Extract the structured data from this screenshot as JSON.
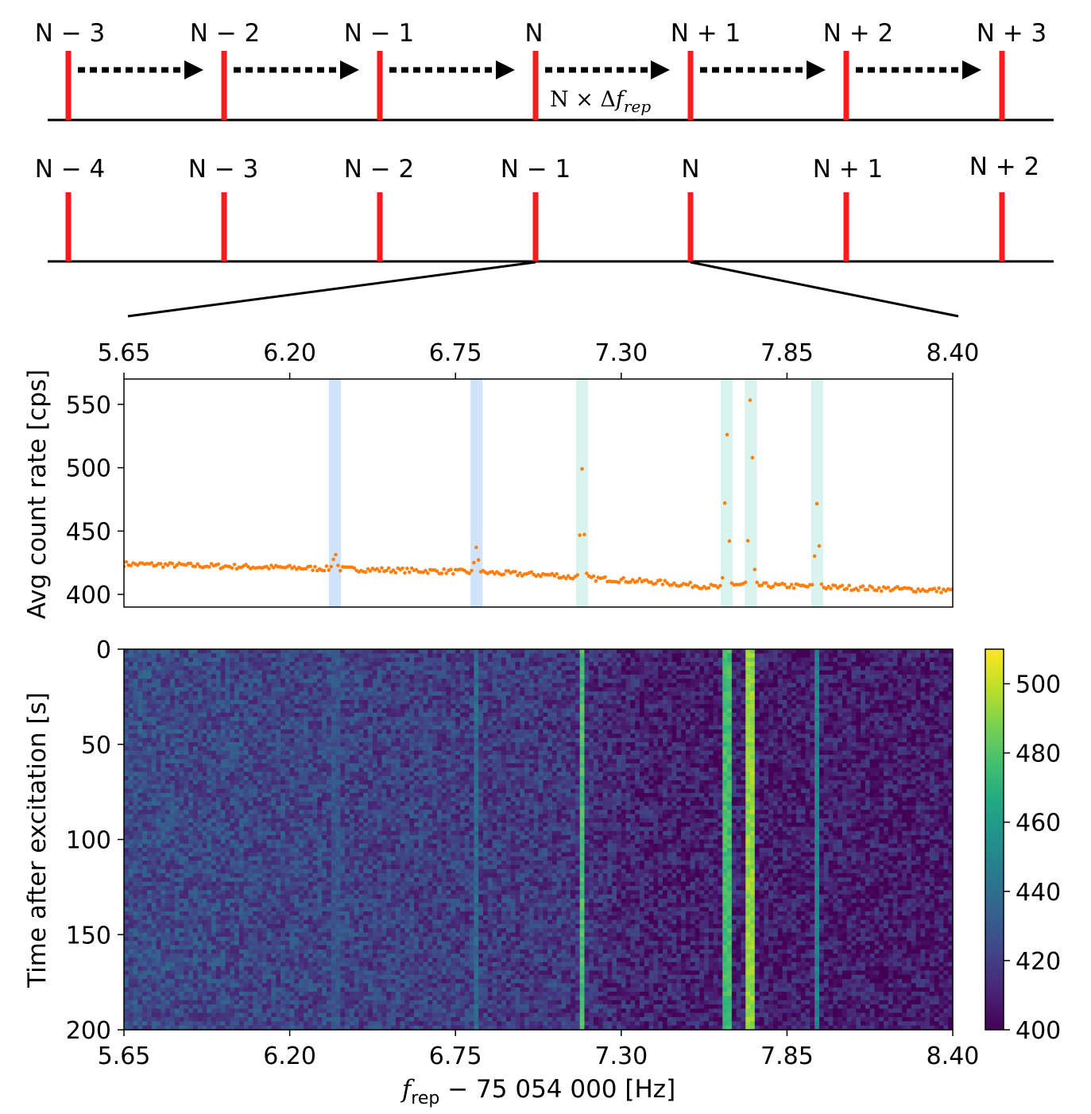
{
  "comb_diagram": {
    "top_row_labels": [
      "N − 3",
      "N − 2",
      "N − 1",
      "N",
      "N + 1",
      "N + 2",
      "N + 3"
    ],
    "bottom_row_labels": [
      "N − 4",
      "N − 3",
      "N − 2",
      "N − 1",
      "N",
      "N + 1",
      "N + 2"
    ],
    "shift_annotation_prefix": "N × Δ",
    "shift_annotation_f": "f",
    "shift_annotation_sub": "rep",
    "tooth_color": "#ff1a1a",
    "arrow_count": 6
  },
  "chart_data": [
    {
      "type": "scatter",
      "title": "",
      "ylabel": "Avg count rate [cps]",
      "xlim": [
        5.65,
        8.4
      ],
      "ylim": [
        390,
        570
      ],
      "x_ticks": [
        "5.65",
        "6.20",
        "6.75",
        "7.30",
        "7.85",
        "8.40"
      ],
      "y_ticks": [
        "400",
        "450",
        "500",
        "550"
      ],
      "marker_color": "#ff7f0e",
      "baseline_segments": [
        {
          "x": [
            5.65,
            6.2,
            6.75,
            7.1
          ],
          "y": [
            424,
            421,
            418,
            415
          ]
        },
        {
          "x": [
            7.1,
            7.4,
            7.65
          ],
          "y": [
            414,
            410,
            405
          ]
        },
        {
          "x": [
            7.65,
            8.4
          ],
          "y": [
            408,
            403
          ]
        }
      ],
      "peaks": [
        {
          "x": 6.35,
          "peak": 433
        },
        {
          "x": 6.82,
          "peak": 438
        },
        {
          "x": 7.17,
          "peak": 498
        },
        {
          "x": 7.65,
          "peak": 526
        },
        {
          "x": 7.73,
          "peak": 564
        },
        {
          "x": 7.95,
          "peak": 473
        }
      ],
      "highlight_bands": [
        {
          "x0": 6.33,
          "x1": 6.37,
          "color": "#cfe3fb"
        },
        {
          "x0": 6.8,
          "x1": 6.84,
          "color": "#cfe3fb"
        },
        {
          "x0": 7.15,
          "x1": 7.19,
          "color": "#d9f3ef"
        },
        {
          "x0": 7.63,
          "x1": 7.67,
          "color": "#d9f3ef"
        },
        {
          "x0": 7.71,
          "x1": 7.75,
          "color": "#d9f3ef"
        },
        {
          "x0": 7.93,
          "x1": 7.97,
          "color": "#d9f3ef"
        }
      ]
    },
    {
      "type": "heatmap",
      "title": "",
      "xlabel_prefix": "f",
      "xlabel_sub": "rep",
      "xlabel_suffix": " − 75 054 000 [Hz]",
      "ylabel": "Time after excitation [s]",
      "xlim": [
        5.65,
        8.4
      ],
      "ylim": [
        0,
        200
      ],
      "x_ticks": [
        "5.65",
        "6.20",
        "6.75",
        "7.30",
        "7.85",
        "8.40"
      ],
      "y_ticks": [
        "0",
        "50",
        "100",
        "150",
        "200"
      ],
      "colormap": "viridis",
      "colorbar_range": [
        400,
        510
      ],
      "colorbar_ticks": [
        "400",
        "420",
        "440",
        "460",
        "480",
        "500"
      ],
      "line_features": [
        {
          "x": 6.35,
          "level": 428
        },
        {
          "x": 6.82,
          "level": 438
        },
        {
          "x": 7.17,
          "level": 478
        },
        {
          "x": 7.65,
          "level": 476
        },
        {
          "x": 7.73,
          "level": 492
        },
        {
          "x": 7.95,
          "level": 450
        }
      ],
      "background_levels": {
        "x": [
          5.65,
          6.75,
          7.1,
          7.4,
          8.4
        ],
        "level": [
          425,
          420,
          418,
          410,
          408
        ]
      }
    }
  ]
}
